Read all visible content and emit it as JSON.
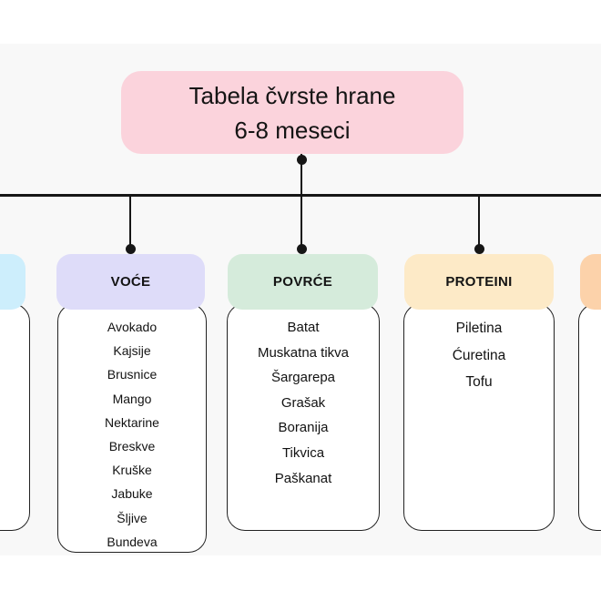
{
  "title": {
    "line1": "Tabela čvrste hrane",
    "line2": "6-8 meseci"
  },
  "columns": [
    {
      "name": "left-partial",
      "label": "",
      "items": []
    },
    {
      "name": "voce",
      "label": "VOĆE",
      "items": [
        "Avokado",
        "Kajsije",
        "Brusnice",
        "Mango",
        "Nektarine",
        "Breskve",
        "Kruške",
        "Jabuke",
        "Šljive",
        "Bundeva"
      ]
    },
    {
      "name": "povrce",
      "label": "POVRĆE",
      "items": [
        "Batat",
        "Muskatna tikva",
        "Šargarepa",
        "Grašak",
        "Boranija",
        "Tikvica",
        "Paškanat"
      ]
    },
    {
      "name": "proteini",
      "label": "PROTEINI",
      "items": [
        "Piletina",
        "Ćuretina",
        "Tofu"
      ]
    },
    {
      "name": "right-partial",
      "label": "",
      "items": []
    }
  ],
  "colors": {
    "title_bg": "#fbd3dc",
    "voce_header_bg": "#dedcf9",
    "povrce_header_bg": "#d5ebdb",
    "proteini_header_bg": "#fdeac7",
    "left_partial_header_bg": "#cdeefc",
    "right_partial_header_bg": "#fcd2aa",
    "diagram_area_bg": "#f8f8f8",
    "connector_line": "#161616"
  }
}
